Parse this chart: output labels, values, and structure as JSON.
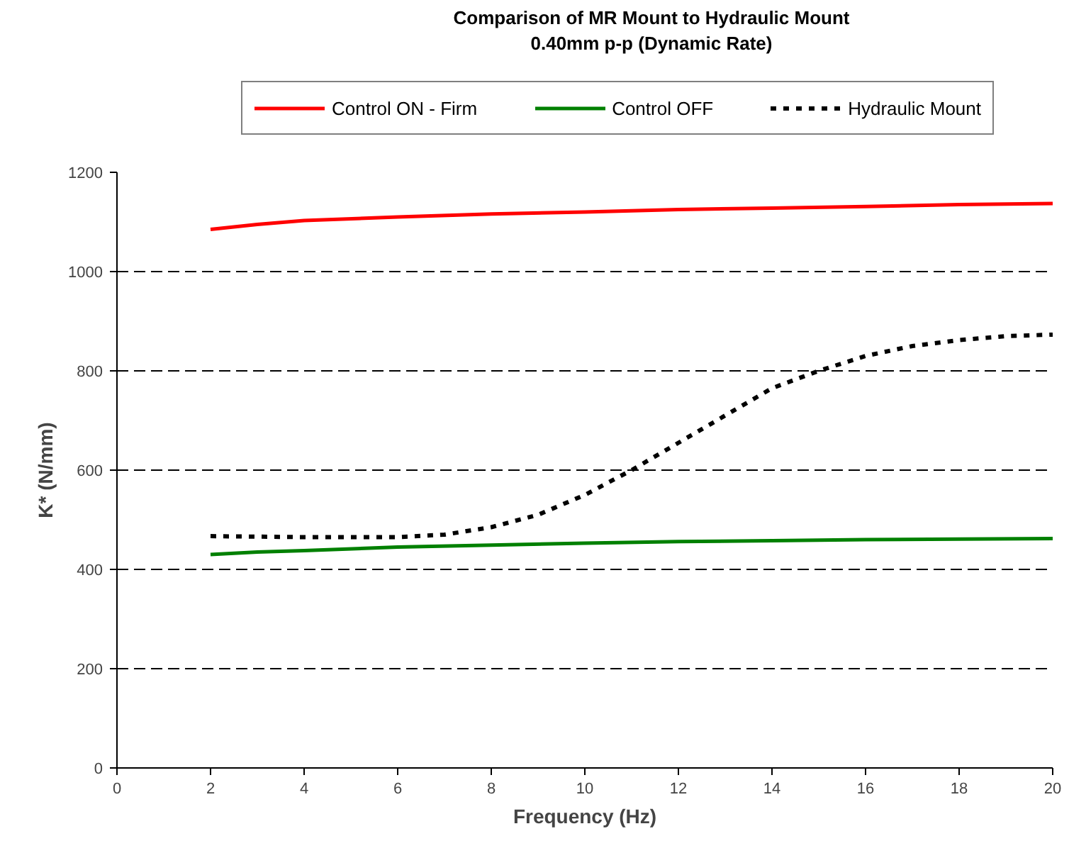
{
  "chart_data": {
    "type": "line",
    "title": "Comparison of MR Mount to Hydraulic Mount",
    "subtitle": "0.40mm p-p (Dynamic Rate)",
    "xlabel": "Frequency (Hz)",
    "ylabel": "K* (N/mm)",
    "xlim": [
      0,
      20
    ],
    "xticks": [
      0,
      2,
      4,
      6,
      8,
      10,
      12,
      14,
      16,
      18,
      20
    ],
    "ylim": [
      0,
      1200
    ],
    "yticks": [
      0,
      200,
      400,
      600,
      800,
      1000,
      1200
    ],
    "grid": "y",
    "legend": "top",
    "marker": "none",
    "series": [
      {
        "name": "Control ON - Firm",
        "color": "#ff0000",
        "line_style": "solid",
        "x": [
          2,
          3,
          4,
          6,
          8,
          10,
          12,
          14,
          16,
          18,
          20
        ],
        "values": [
          1085,
          1095,
          1103,
          1110,
          1116,
          1120,
          1125,
          1128,
          1131,
          1135,
          1137
        ]
      },
      {
        "name": "Control OFF",
        "color": "#008000",
        "line_style": "solid",
        "x": [
          2,
          3,
          4,
          6,
          8,
          10,
          12,
          14,
          16,
          18,
          20
        ],
        "values": [
          430,
          435,
          438,
          445,
          449,
          453,
          456,
          458,
          460,
          461,
          462
        ]
      },
      {
        "name": "Hydraulic Mount",
        "color": "#000000",
        "line_style": "dotted",
        "x": [
          2,
          4,
          6,
          7,
          8,
          9,
          10,
          11,
          12,
          13,
          14,
          15,
          16,
          17,
          18,
          19,
          20
        ],
        "values": [
          467,
          465,
          465,
          470,
          485,
          510,
          550,
          600,
          655,
          710,
          765,
          800,
          830,
          850,
          862,
          870,
          873
        ]
      }
    ]
  }
}
